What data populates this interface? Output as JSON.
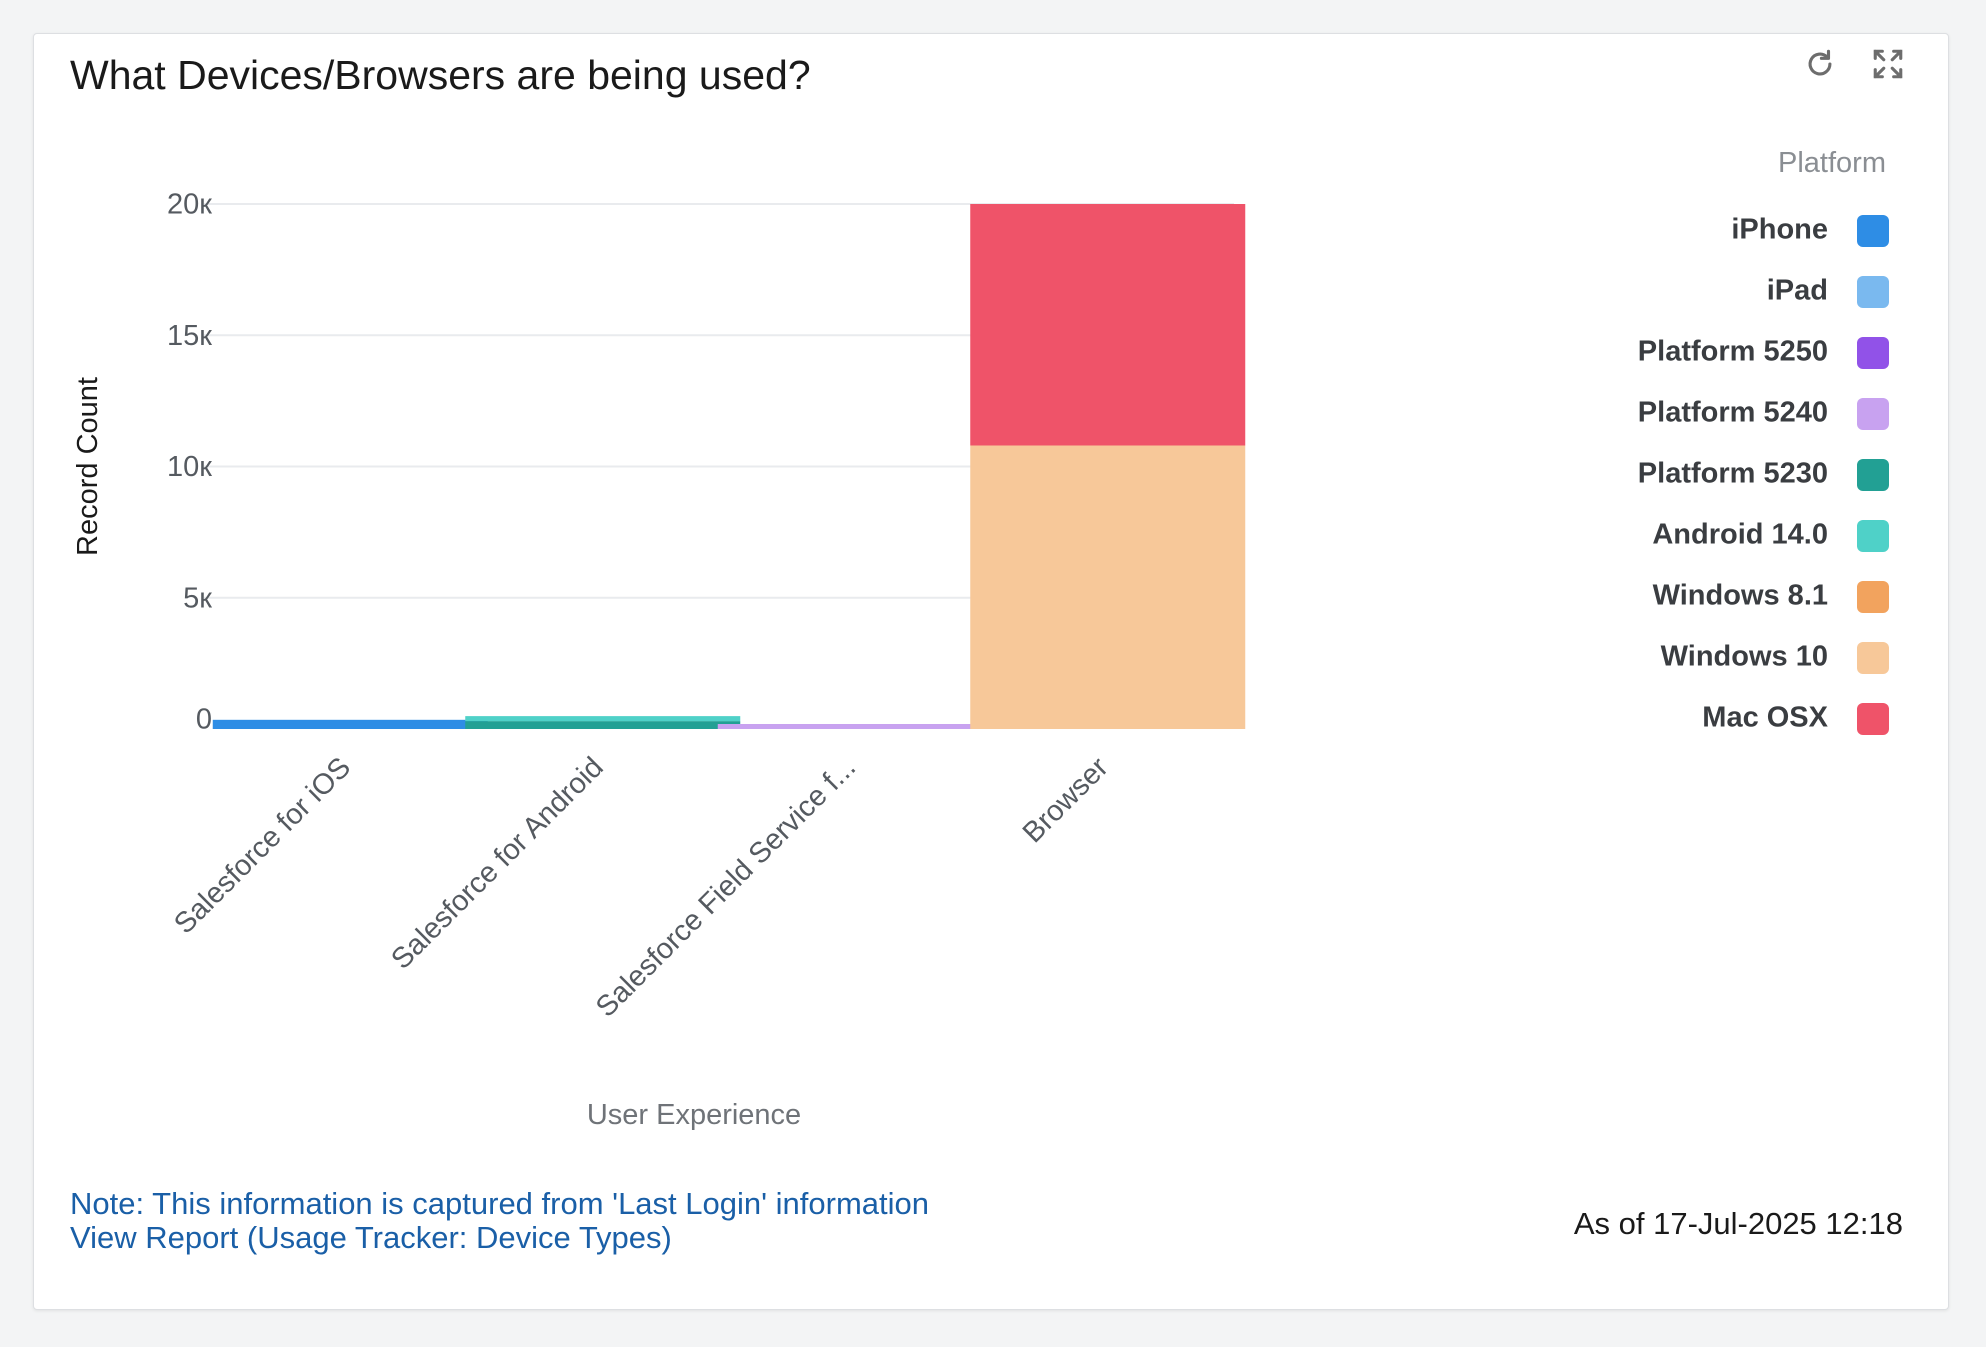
{
  "header": {
    "title": "What Devices/Browsers are being used?",
    "refresh_icon": "refresh-icon",
    "expand_icon": "expand-icon"
  },
  "footer": {
    "note": "Note: This information is captured from 'Last Login' information",
    "report_link": "View Report (Usage Tracker: Device Types)",
    "as_of": "As of 17-Jul-2025 12:18"
  },
  "chart_data": {
    "type": "bar",
    "stacked": true,
    "xlabel": "User Experience",
    "ylabel": "Record Count",
    "ylim": [
      0,
      20000
    ],
    "y_ticks": [
      {
        "value": 0,
        "label": "0"
      },
      {
        "value": 5000,
        "label": "5к"
      },
      {
        "value": 10000,
        "label": "10к"
      },
      {
        "value": 15000,
        "label": "15к"
      },
      {
        "value": 20000,
        "label": "20к"
      }
    ],
    "categories": [
      "Salesforce for iOS",
      "Salesforce for Android",
      "Salesforce Field Service f...",
      "Browser"
    ],
    "legend_title": "Platform",
    "legend_position": "right",
    "grid": true,
    "series": [
      {
        "name": "iPhone",
        "color": "#2e8de5",
        "values": [
          350,
          0,
          0,
          0
        ]
      },
      {
        "name": "iPad",
        "color": "#7ab9ef",
        "values": [
          0,
          0,
          0,
          0
        ]
      },
      {
        "name": "Platform 5250",
        "color": "#9152e8",
        "values": [
          0,
          0,
          0,
          0
        ]
      },
      {
        "name": "Platform 5240",
        "color": "#c8a2f0",
        "values": [
          0,
          0,
          150,
          0
        ]
      },
      {
        "name": "Platform 5230",
        "color": "#22a094",
        "values": [
          0,
          300,
          0,
          0
        ]
      },
      {
        "name": "Android 14.0",
        "color": "#4fd1c8",
        "values": [
          0,
          100,
          0,
          0
        ]
      },
      {
        "name": "Windows 8.1",
        "color": "#f2a35e",
        "values": [
          0,
          0,
          0,
          0
        ]
      },
      {
        "name": "Windows 10",
        "color": "#f7c899",
        "values": [
          0,
          0,
          0,
          10800
        ]
      },
      {
        "name": "Mac OSX",
        "color": "#ef5369",
        "values": [
          0,
          0,
          0,
          9200
        ]
      }
    ]
  }
}
